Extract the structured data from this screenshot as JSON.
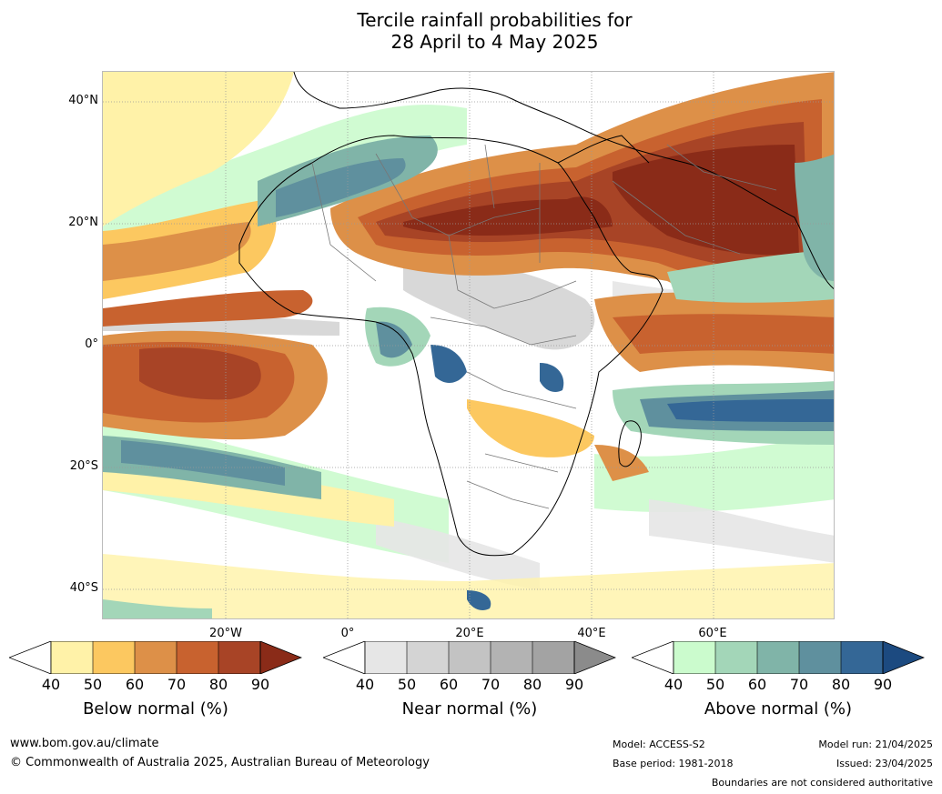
{
  "title_line1": "Tercile rainfall probabilities for",
  "title_line2": "28 April to 4 May 2025",
  "lat_labels": [
    "40°N",
    "20°N",
    "0°",
    "20°S",
    "40°S"
  ],
  "lon_labels": [
    "20°W",
    "0°",
    "20°E",
    "40°E",
    "60°E"
  ],
  "legends": [
    {
      "title": "Below normal (%)",
      "ticks": [
        "40",
        "50",
        "60",
        "70",
        "80",
        "90"
      ],
      "colors": [
        "#fff2a8",
        "#fcc860",
        "#dd9048",
        "#c8622f",
        "#a84426",
        "#8a2b18"
      ]
    },
    {
      "title": "Near normal (%)",
      "ticks": [
        "40",
        "50",
        "60",
        "70",
        "80",
        "90"
      ],
      "colors": [
        "#e6e6e6",
        "#d4d4d4",
        "#c3c3c3",
        "#b3b3b3",
        "#a3a3a3",
        "#8b8b8b"
      ]
    },
    {
      "title": "Above normal (%)",
      "ticks": [
        "40",
        "50",
        "60",
        "70",
        "80",
        "90"
      ],
      "colors": [
        "#cbfbcd",
        "#a3d6b8",
        "#80b4a8",
        "#5f909e",
        "#346796",
        "#1c4a80"
      ]
    }
  ],
  "footer": {
    "website": "www.bom.gov.au/climate",
    "copyright": "© Commonwealth of Australia 2025, Australian Bureau of Meteorology",
    "model": "Model: ACCESS-S2",
    "base_period": "Base period: 1981-2018",
    "model_run": "Model run: 21/04/2025",
    "issued": "Issued: 23/04/2025",
    "disclaimer": "Boundaries are not considered authoritative"
  }
}
